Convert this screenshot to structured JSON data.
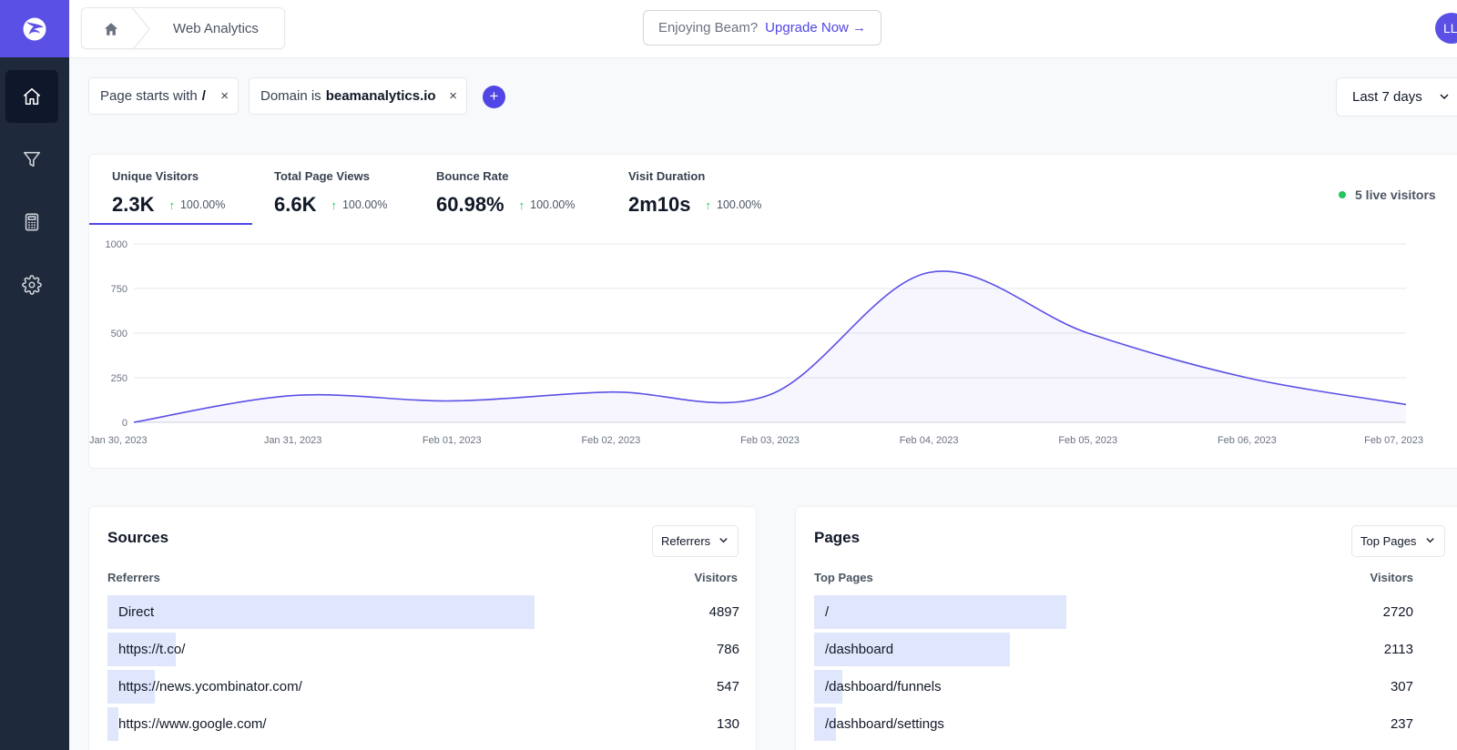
{
  "header": {
    "breadcrumb_label": "Web Analytics",
    "promo_text": "Enjoying Beam?",
    "promo_link": "Upgrade Now →",
    "avatar_initials": "LL"
  },
  "sidebar": {
    "items": [
      {
        "icon": "home-icon",
        "active": true
      },
      {
        "icon": "funnel-icon",
        "active": false
      },
      {
        "icon": "calculator-icon",
        "active": false
      },
      {
        "icon": "gear-icon",
        "active": false
      }
    ]
  },
  "filters": [
    {
      "prefix": "Page starts with",
      "value": "/",
      "remove": "×"
    },
    {
      "prefix": "Domain is",
      "value": "beamanalytics.io",
      "remove": "×"
    }
  ],
  "add_filter_label": "+",
  "date_range": "Last 7 days",
  "stats": [
    {
      "label": "Unique Visitors",
      "value": "2.3K",
      "change": "100.00%",
      "arrow": "↑"
    },
    {
      "label": "Total Page Views",
      "value": "6.6K",
      "change": "100.00%",
      "arrow": "↑"
    },
    {
      "label": "Bounce Rate",
      "value": "60.98%",
      "change": "100.00%",
      "arrow": "↑"
    },
    {
      "label": "Visit Duration",
      "value": "2m10s",
      "change": "100.00%",
      "arrow": "↑"
    }
  ],
  "live_visitors": "5 live visitors",
  "chart_data": {
    "type": "area",
    "x": [
      "Jan 30, 2023",
      "Jan 31, 2023",
      "Feb 01, 2023",
      "Feb 02, 2023",
      "Feb 03, 2023",
      "Feb 04, 2023",
      "Feb 05, 2023",
      "Feb 06, 2023",
      "Feb 07, 2023"
    ],
    "series": [
      {
        "values": [
          0,
          150,
          120,
          170,
          155,
          840,
          500,
          250,
          100
        ]
      }
    ],
    "yticks": [
      0,
      250,
      500,
      750,
      1000
    ],
    "ylim": [
      0,
      1000
    ],
    "grid": true,
    "color": "#5b50e6"
  },
  "sources": {
    "title": "Sources",
    "dropdown": "Referrers",
    "col_name": "Referrers",
    "col_value": "Visitors",
    "rows": [
      {
        "name": "Direct",
        "value": "4897",
        "n": 4897
      },
      {
        "name": "https://t.co/",
        "value": "786",
        "n": 786
      },
      {
        "name": "https://news.ycombinator.com/",
        "value": "547",
        "n": 547
      },
      {
        "name": "https://www.google.com/",
        "value": "130",
        "n": 130
      }
    ]
  },
  "pages": {
    "title": "Pages",
    "dropdown": "Top Pages",
    "col_name": "Top Pages",
    "col_value": "Visitors",
    "rows": [
      {
        "name": "/",
        "value": "2720",
        "n": 2720
      },
      {
        "name": "/dashboard",
        "value": "2113",
        "n": 2113
      },
      {
        "name": "/dashboard/funnels",
        "value": "307",
        "n": 307
      },
      {
        "name": "/dashboard/settings",
        "value": "237",
        "n": 237
      }
    ]
  }
}
